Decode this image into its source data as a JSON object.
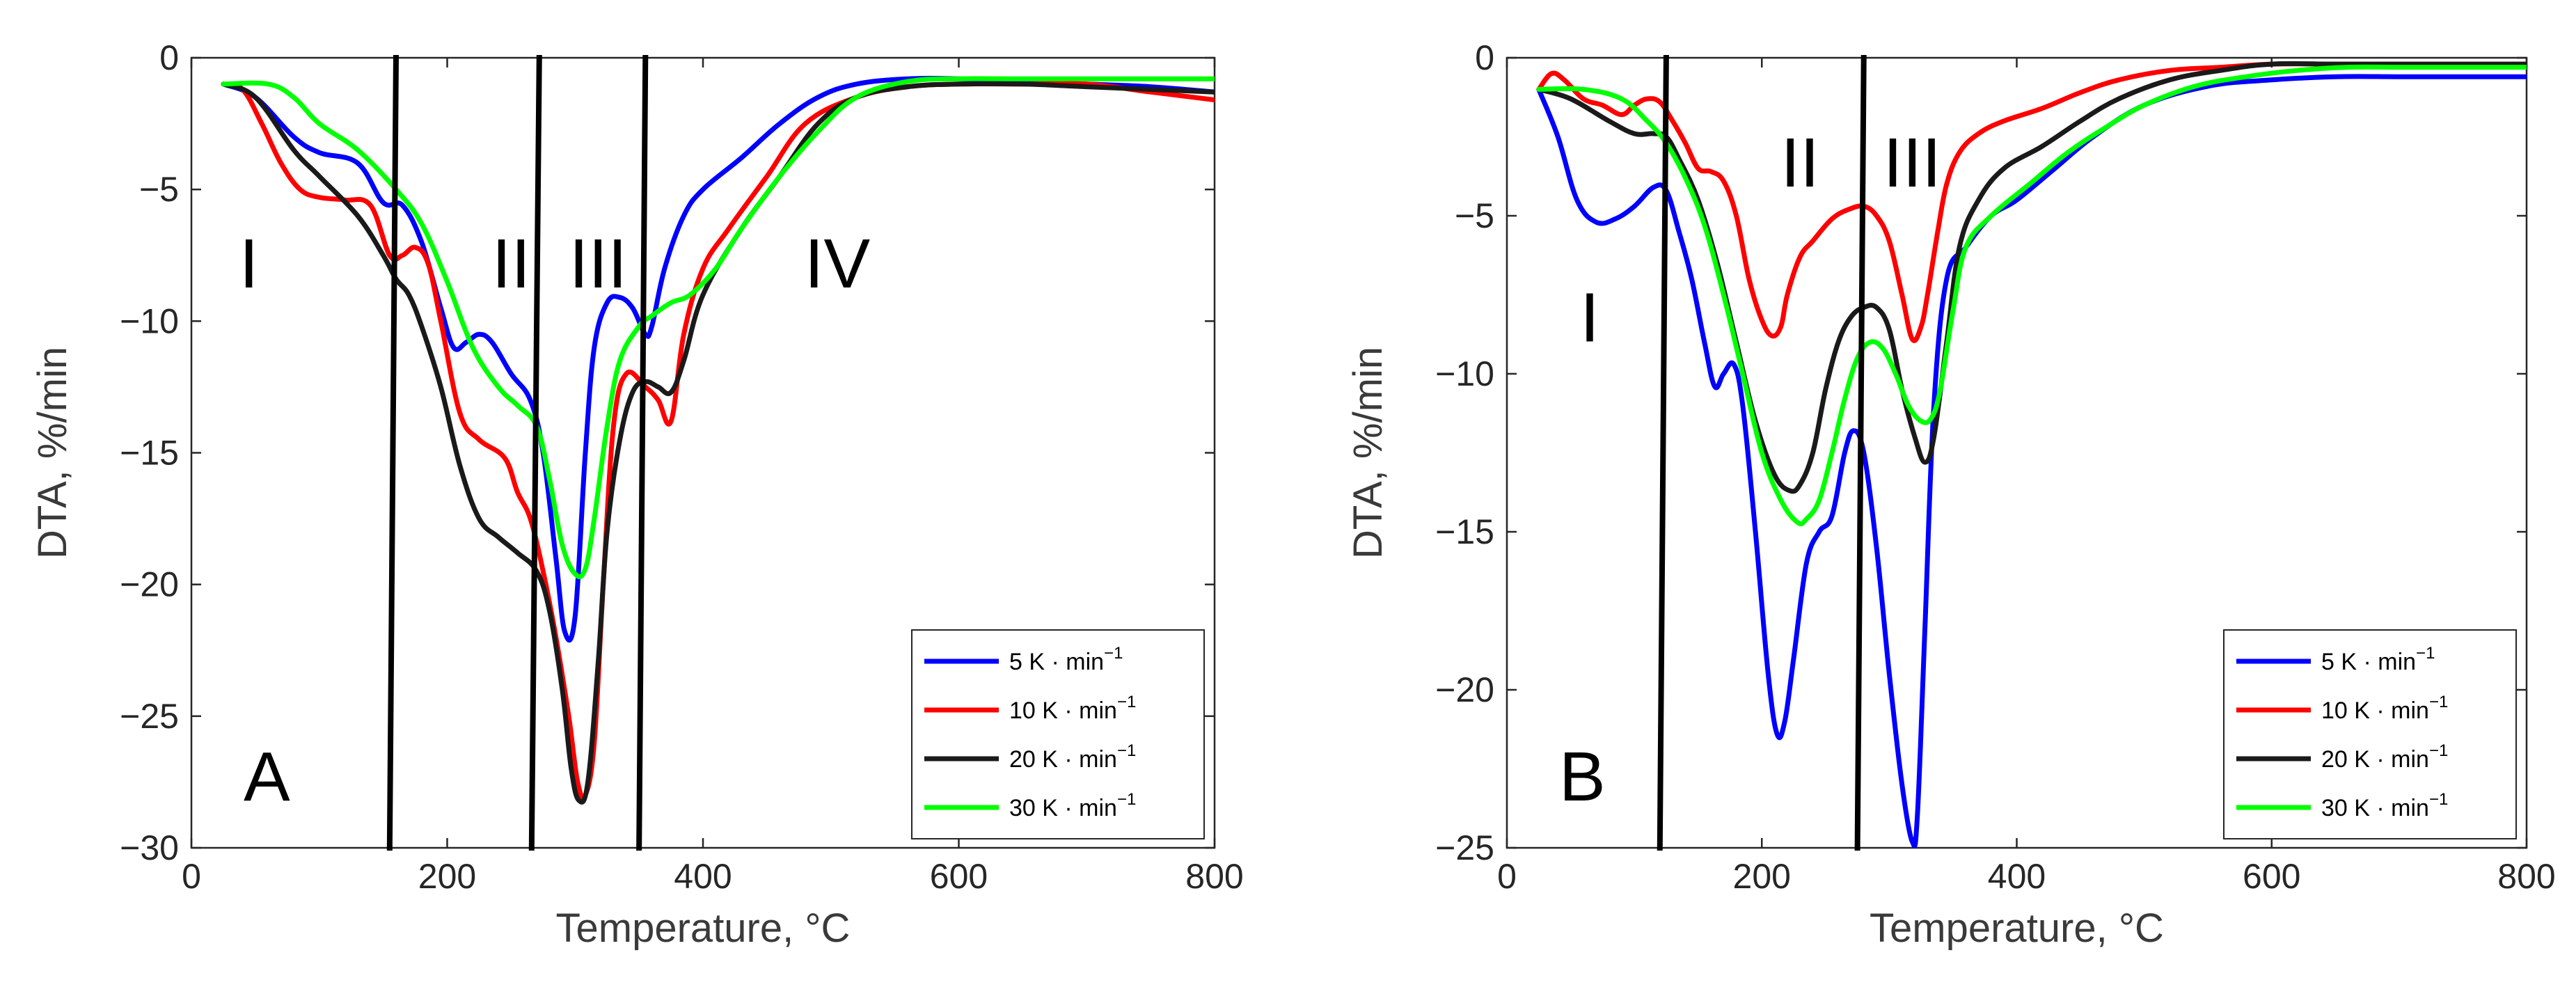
{
  "figure": {
    "charts": [
      {
        "panel": "A",
        "axes": {
          "xlabel": "Temperature, °C",
          "ylabel": "DTA, %/min",
          "xlim": [
            0,
            800
          ],
          "ylim": [
            -30,
            0
          ],
          "xticks": [
            0,
            200,
            400,
            600,
            800
          ],
          "yticks": [
            0,
            -5,
            -10,
            -15,
            -20,
            -25,
            -30
          ]
        },
        "region_labels": [
          {
            "text": "I",
            "x": 45,
            "y": -7.8
          },
          {
            "text": "II",
            "x": 250,
            "y": -7.8
          },
          {
            "text": "III",
            "x": 318,
            "y": -7.8
          },
          {
            "text": "IV",
            "x": 505,
            "y": -7.8
          }
        ],
        "divider_lines": [
          {
            "x_top": 160,
            "x_bottom": 155
          },
          {
            "x_top": 272,
            "x_bottom": 266
          },
          {
            "x_top": 355,
            "x_bottom": 350
          }
        ]
      },
      {
        "panel": "B",
        "axes": {
          "xlabel": "Temperature, °C",
          "ylabel": "DTA, %/min",
          "xlim": [
            0,
            800
          ],
          "ylim": [
            -25,
            0
          ],
          "xticks": [
            0,
            200,
            400,
            600,
            800
          ],
          "yticks": [
            0,
            -5,
            -10,
            -15,
            -20,
            -25
          ]
        },
        "region_labels": [
          {
            "text": "I",
            "x": 65,
            "y": -8.2
          },
          {
            "text": "II",
            "x": 230,
            "y": -3.3
          },
          {
            "text": "III",
            "x": 318,
            "y": -3.3
          }
        ],
        "divider_lines": [
          {
            "x_top": 125,
            "x_bottom": 120
          },
          {
            "x_top": 280,
            "x_bottom": 275
          }
        ]
      }
    ]
  },
  "chart_data": [
    {
      "type": "line",
      "panel": "A",
      "xlabel": "Temperature, °C",
      "ylabel": "DTA, %/min",
      "xlim": [
        0,
        800
      ],
      "ylim": [
        -30,
        0
      ],
      "legend_position": "bottom-right",
      "series": [
        {
          "name": "5 K · min",
          "color": "#0000ff",
          "x": [
            25,
            50,
            80,
            100,
            130,
            150,
            165,
            180,
            195,
            205,
            215,
            225,
            235,
            250,
            265,
            275,
            285,
            292,
            300,
            308,
            315,
            325,
            335,
            345,
            355,
            360,
            370,
            385,
            400,
            430,
            460,
            490,
            520,
            560,
            600,
            650,
            700,
            750,
            800
          ],
          "y": [
            -1,
            -1.5,
            -3,
            -3.6,
            -4,
            -5.5,
            -5.6,
            -7,
            -9.5,
            -11,
            -10.8,
            -10.5,
            -10.8,
            -12,
            -13,
            -15,
            -19,
            -21.8,
            -21.2,
            -15,
            -11,
            -9.3,
            -9.1,
            -9.5,
            -10.5,
            -10.2,
            -8,
            -6,
            -5,
            -3.8,
            -2.5,
            -1.5,
            -1,
            -0.8,
            -0.8,
            -0.9,
            -1,
            -1.1,
            -1.3
          ]
        },
        {
          "name": "10 K · min",
          "color": "#ff0000",
          "x": [
            25,
            40,
            55,
            70,
            85,
            100,
            120,
            140,
            155,
            165,
            175,
            185,
            195,
            210,
            225,
            245,
            255,
            265,
            275,
            285,
            295,
            302,
            308,
            315,
            322,
            330,
            340,
            355,
            365,
            375,
            385,
            400,
            420,
            450,
            480,
            520,
            560,
            600,
            650,
            700,
            750,
            800
          ],
          "y": [
            -1,
            -1.2,
            -2.5,
            -4,
            -5,
            -5.3,
            -5.4,
            -5.6,
            -7.5,
            -7.5,
            -7.2,
            -7.8,
            -10,
            -13.5,
            -14.5,
            -15.2,
            -16.5,
            -17.5,
            -19.5,
            -22,
            -25,
            -27.5,
            -28,
            -26,
            -20,
            -14,
            -12,
            -12.5,
            -13,
            -13.8,
            -10.5,
            -8,
            -6.5,
            -4.5,
            -2.5,
            -1.5,
            -1.1,
            -1,
            -1,
            -1,
            -1.3,
            -1.6
          ]
        },
        {
          "name": "20 K · min",
          "color": "#1a1a1a",
          "x": [
            25,
            50,
            80,
            100,
            130,
            150,
            160,
            170,
            180,
            195,
            210,
            225,
            240,
            255,
            270,
            280,
            290,
            297,
            303,
            310,
            318,
            325,
            335,
            345,
            355,
            365,
            375,
            385,
            400,
            430,
            460,
            490,
            520,
            560,
            600,
            650,
            700,
            750,
            800
          ],
          "y": [
            -1,
            -1.5,
            -3.5,
            -4.5,
            -6,
            -7.5,
            -8.4,
            -9,
            -10.2,
            -12.5,
            -15.5,
            -17.5,
            -18.2,
            -18.8,
            -19.5,
            -21,
            -24,
            -27,
            -28.2,
            -27.5,
            -23,
            -18,
            -14.5,
            -12.7,
            -12.3,
            -12.5,
            -12.7,
            -11.5,
            -9,
            -6.5,
            -4.5,
            -2.5,
            -1.5,
            -1.1,
            -1,
            -1,
            -1.1,
            -1.2,
            -1.3
          ]
        },
        {
          "name": "30 K · min",
          "color": "#00ff00",
          "x": [
            25,
            60,
            80,
            100,
            130,
            160,
            180,
            200,
            220,
            240,
            255,
            270,
            280,
            290,
            300,
            308,
            315,
            325,
            335,
            350,
            360,
            375,
            390,
            410,
            430,
            460,
            490,
            520,
            560,
            600,
            650,
            700,
            750,
            800
          ],
          "y": [
            -1,
            -1,
            -1.5,
            -2.5,
            -3.5,
            -5,
            -6.3,
            -8.5,
            -11,
            -12.5,
            -13.2,
            -14,
            -16,
            -18.5,
            -19.6,
            -19.4,
            -17.5,
            -14,
            -11.5,
            -10.2,
            -9.8,
            -9.3,
            -9,
            -8,
            -6.5,
            -4.5,
            -2.8,
            -1.5,
            -0.9,
            -0.8,
            -0.8,
            -0.8,
            -0.8,
            -0.8
          ]
        }
      ]
    },
    {
      "type": "line",
      "panel": "B",
      "xlabel": "Temperature, °C",
      "ylabel": "DTA, %/min",
      "xlim": [
        0,
        800
      ],
      "ylim": [
        -25,
        0
      ],
      "legend_position": "bottom-right",
      "series": [
        {
          "name": "5 K · min",
          "color": "#0000ff",
          "x": [
            25,
            40,
            55,
            70,
            85,
            100,
            115,
            125,
            135,
            145,
            155,
            163,
            170,
            178,
            185,
            195,
            205,
            212,
            218,
            225,
            235,
            245,
            255,
            265,
            272,
            280,
            290,
            300,
            310,
            318,
            322,
            328,
            335,
            345,
            360,
            380,
            400,
            430,
            460,
            500,
            550,
            600,
            650,
            700,
            750,
            800
          ],
          "y": [
            -1,
            -2.5,
            -4.5,
            -5.2,
            -5.1,
            -4.7,
            -4.1,
            -4.2,
            -5.5,
            -7,
            -9,
            -10.4,
            -10,
            -9.7,
            -11,
            -15,
            -19.5,
            -21.4,
            -21,
            -19,
            -16,
            -15,
            -14.5,
            -12.5,
            -11.8,
            -12.5,
            -15.5,
            -19.5,
            -23,
            -24.8,
            -24,
            -18,
            -11,
            -7,
            -6,
            -5,
            -4.5,
            -3.5,
            -2.5,
            -1.5,
            -0.9,
            -0.7,
            -0.6,
            -0.6,
            -0.6,
            -0.6
          ]
        },
        {
          "name": "10 K · min",
          "color": "#ff0000",
          "x": [
            25,
            35,
            45,
            60,
            75,
            90,
            100,
            110,
            120,
            130,
            140,
            150,
            160,
            170,
            180,
            190,
            200,
            208,
            215,
            220,
            230,
            240,
            255,
            268,
            280,
            290,
            300,
            310,
            318,
            325,
            330,
            338,
            345,
            355,
            370,
            390,
            420,
            450,
            480,
            520,
            560,
            600,
            650,
            700,
            750,
            800
          ],
          "y": [
            -1,
            -0.5,
            -0.7,
            -1.3,
            -1.5,
            -1.8,
            -1.5,
            -1.3,
            -1.4,
            -2,
            -2.7,
            -3.5,
            -3.6,
            -3.9,
            -5,
            -7,
            -8.3,
            -8.8,
            -8.5,
            -7.5,
            -6.3,
            -5.8,
            -5.1,
            -4.8,
            -4.7,
            -5,
            -5.8,
            -7.5,
            -8.9,
            -8.5,
            -7.5,
            -5.5,
            -4,
            -3,
            -2.4,
            -2,
            -1.6,
            -1.1,
            -0.7,
            -0.4,
            -0.3,
            -0.2,
            -0.2,
            -0.2,
            -0.2,
            -0.2
          ]
        },
        {
          "name": "20 K · min",
          "color": "#1a1a1a",
          "x": [
            25,
            50,
            80,
            100,
            115,
            125,
            135,
            150,
            165,
            180,
            195,
            210,
            222,
            230,
            240,
            250,
            260,
            270,
            280,
            290,
            300,
            310,
            320,
            328,
            335,
            345,
            355,
            370,
            390,
            420,
            450,
            480,
            520,
            560,
            600,
            650,
            700,
            750,
            800
          ],
          "y": [
            -1,
            -1.3,
            -2,
            -2.4,
            -2.4,
            -2.5,
            -3.2,
            -4.5,
            -6.5,
            -9,
            -11.5,
            -13.2,
            -13.7,
            -13.5,
            -12.5,
            -10.5,
            -9,
            -8.2,
            -7.9,
            -7.9,
            -8.6,
            -10.5,
            -12,
            -12.8,
            -12,
            -9,
            -6,
            -4.5,
            -3.5,
            -2.8,
            -2,
            -1.3,
            -0.7,
            -0.4,
            -0.2,
            -0.2,
            -0.2,
            -0.2,
            -0.2
          ]
        },
        {
          "name": "30 K · min",
          "color": "#00ff00",
          "x": [
            25,
            60,
            90,
            110,
            125,
            140,
            155,
            170,
            185,
            200,
            215,
            228,
            235,
            245,
            255,
            265,
            275,
            285,
            295,
            305,
            315,
            325,
            333,
            340,
            350,
            360,
            380,
            410,
            440,
            470,
            500,
            540,
            580,
            620,
            660,
            700,
            750,
            800
          ],
          "y": [
            -1,
            -1,
            -1.3,
            -2,
            -2.7,
            -3.8,
            -5.3,
            -7.5,
            -10,
            -12.5,
            -14,
            -14.7,
            -14.6,
            -14,
            -12.5,
            -10.8,
            -9.5,
            -9,
            -9.2,
            -10,
            -11,
            -11.5,
            -11.4,
            -10.5,
            -8,
            -6,
            -5,
            -4,
            -3,
            -2.2,
            -1.5,
            -0.9,
            -0.6,
            -0.4,
            -0.3,
            -0.3,
            -0.3,
            -0.3
          ]
        }
      ]
    }
  ]
}
